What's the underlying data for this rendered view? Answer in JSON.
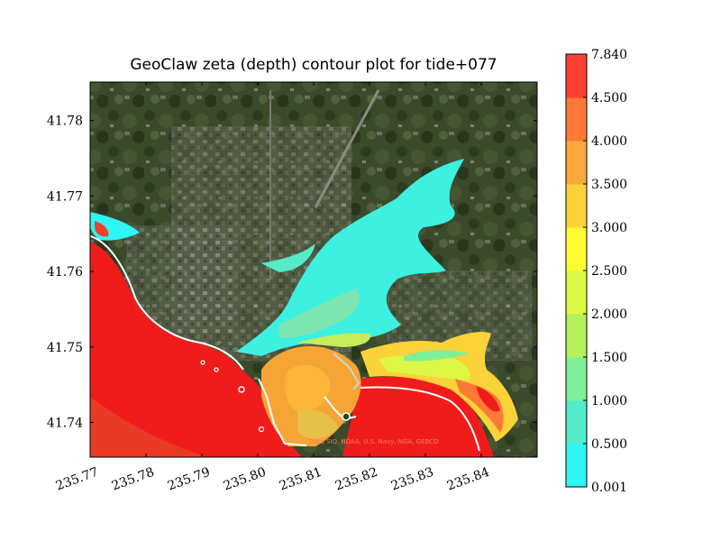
{
  "chart_data": {
    "type": "heatmap",
    "title": "GeoClaw zeta (depth) contour plot for tide+077",
    "x_ticks": [
      "235.77",
      "235.78",
      "235.79",
      "235.80",
      "235.81",
      "235.82",
      "235.83",
      "235.84"
    ],
    "x_tick_values": [
      235.77,
      235.78,
      235.79,
      235.8,
      235.81,
      235.82,
      235.83,
      235.84
    ],
    "y_ticks": [
      "41.74",
      "41.75",
      "41.76",
      "41.77",
      "41.78"
    ],
    "y_tick_values": [
      41.74,
      41.75,
      41.76,
      41.77,
      41.78
    ],
    "xlim": [
      235.77,
      235.85
    ],
    "ylim": [
      41.7354,
      41.7851
    ],
    "colorbar": {
      "levels": [
        "0.001",
        "0.500",
        "1.000",
        "1.500",
        "2.000",
        "2.500",
        "3.000",
        "3.500",
        "4.000",
        "4.500",
        "7.840"
      ],
      "colors": [
        "#2ff5f5",
        "#52ecc8",
        "#7df09a",
        "#b3f05a",
        "#dcf844",
        "#fcfc30",
        "#fcd23a",
        "#fca73a",
        "#fc7a36",
        "#fc3f32"
      ]
    },
    "watermark": "Data SIO, NOAA, U.S. Navy, NGA, GEBCO"
  }
}
